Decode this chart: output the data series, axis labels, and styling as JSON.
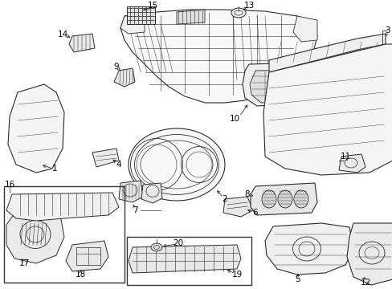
{
  "background_color": "#ffffff",
  "line_color": "#2a2a2a",
  "fig_width": 4.89,
  "fig_height": 3.6,
  "dpi": 100,
  "label_fontsize": 7.5,
  "label_color": "#000000"
}
